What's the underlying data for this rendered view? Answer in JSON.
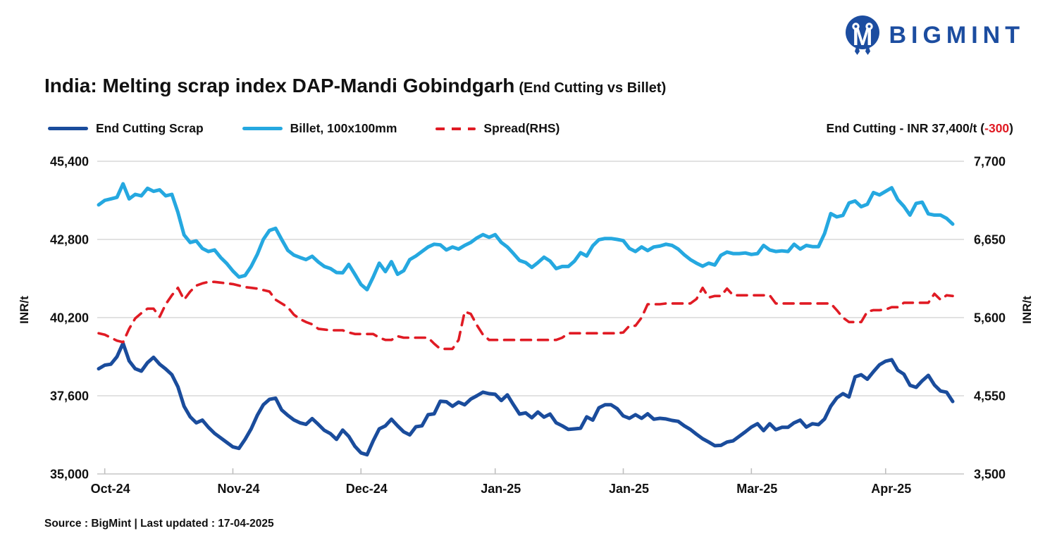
{
  "logo": {
    "text": "BIGMINT",
    "color": "#1c4da0"
  },
  "title": {
    "main": "India: Melting scrap index DAP-Mandi Gobindgarh",
    "sub": "(End Cutting vs Billet)"
  },
  "legend": {
    "items": [
      {
        "label": "End Cutting Scrap",
        "color": "#1a4c9c",
        "style": "solid"
      },
      {
        "label": "Billet, 100x100mm",
        "color": "#25a8e0",
        "style": "solid"
      },
      {
        "label": "Spread(RHS)",
        "color": "#e01b24",
        "style": "dashed"
      }
    ]
  },
  "annotation": {
    "prefix": "End Cutting - INR 37,400/t (",
    "change": "-300",
    "suffix": ")"
  },
  "source": "Source : BigMint | Last updated : 17-04-2025",
  "chart_data": {
    "type": "line",
    "title": "India: Melting scrap index DAP-Mandi Gobindgarh (End Cutting vs Billet)",
    "grid": true,
    "legend_position": "top-left",
    "x_tick_labels": [
      "Oct-24",
      "Nov-24",
      "Dec-24",
      "Jan-25",
      "Jan-25",
      "Mar-25",
      "Apr-25"
    ],
    "x_tick_indices": [
      1,
      22,
      43,
      65,
      86,
      107,
      129
    ],
    "left_axis": {
      "label": "INR/t",
      "range": [
        35000,
        45400
      ],
      "ticks": [
        45400,
        42800,
        40200,
        37600,
        35000
      ],
      "tick_labels": [
        "45,400",
        "42,800",
        "40,200",
        "37,600",
        "35,000"
      ]
    },
    "right_axis": {
      "label": "INR/t",
      "range": [
        3500,
        7700
      ],
      "ticks": [
        7700,
        6650,
        5600,
        4550,
        3500
      ],
      "tick_labels": [
        "7,700",
        "6,650",
        "5,600",
        "4,550",
        "3,500"
      ]
    },
    "series": [
      {
        "name": "End Cutting Scrap",
        "axis": "left",
        "color": "#1a4c9c",
        "style": "solid",
        "last_value": 37400,
        "last_change": -300,
        "values": [
          38500,
          38620,
          38650,
          38900,
          39350,
          38760,
          38500,
          38420,
          38700,
          38880,
          38650,
          38490,
          38300,
          37900,
          37250,
          36900,
          36700,
          36790,
          36550,
          36350,
          36200,
          36050,
          35900,
          35850,
          36150,
          36500,
          36950,
          37300,
          37480,
          37520,
          37130,
          36950,
          36800,
          36700,
          36650,
          36840,
          36650,
          36450,
          36340,
          36150,
          36460,
          36250,
          35920,
          35700,
          35640,
          36100,
          36500,
          36600,
          36820,
          36600,
          36400,
          36300,
          36570,
          36600,
          36970,
          37000,
          37420,
          37400,
          37250,
          37390,
          37300,
          37490,
          37600,
          37720,
          37670,
          37650,
          37440,
          37630,
          37300,
          36990,
          37030,
          36870,
          37060,
          36890,
          36990,
          36700,
          36600,
          36480,
          36500,
          36520,
          36900,
          36790,
          37200,
          37300,
          37300,
          37170,
          36930,
          36850,
          36970,
          36850,
          37000,
          36820,
          36850,
          36830,
          36780,
          36750,
          36600,
          36480,
          36320,
          36170,
          36060,
          35940,
          35950,
          36060,
          36100,
          36250,
          36400,
          36560,
          36670,
          36440,
          36670,
          36470,
          36550,
          36550,
          36700,
          36790,
          36560,
          36670,
          36640,
          36830,
          37250,
          37530,
          37670,
          37560,
          38230,
          38300,
          38150,
          38400,
          38630,
          38750,
          38800,
          38450,
          38320,
          37950,
          37880,
          38100,
          38280,
          37960,
          37760,
          37720,
          37410
        ]
      },
      {
        "name": "Billet, 100x100mm",
        "axis": "left",
        "color": "#25a8e0",
        "style": "solid",
        "values": [
          43950,
          44100,
          44150,
          44200,
          44650,
          44150,
          44300,
          44250,
          44500,
          44400,
          44450,
          44250,
          44300,
          43700,
          42950,
          42700,
          42750,
          42500,
          42400,
          42450,
          42200,
          42000,
          41750,
          41550,
          41600,
          41900,
          42300,
          42800,
          43100,
          43170,
          42800,
          42440,
          42280,
          42200,
          42130,
          42240,
          42050,
          41900,
          41830,
          41700,
          41690,
          41970,
          41640,
          41300,
          41130,
          41550,
          42010,
          41730,
          42060,
          41640,
          41760,
          42130,
          42250,
          42400,
          42550,
          42640,
          42620,
          42450,
          42550,
          42480,
          42600,
          42700,
          42850,
          42960,
          42870,
          42960,
          42700,
          42550,
          42330,
          42100,
          42030,
          41870,
          42030,
          42210,
          42080,
          41830,
          41900,
          41900,
          42080,
          42360,
          42250,
          42590,
          42790,
          42830,
          42830,
          42800,
          42760,
          42500,
          42400,
          42550,
          42430,
          42550,
          42580,
          42640,
          42600,
          42480,
          42290,
          42130,
          42010,
          41910,
          42010,
          41950,
          42270,
          42380,
          42330,
          42330,
          42350,
          42300,
          42330,
          42600,
          42450,
          42400,
          42420,
          42400,
          42640,
          42480,
          42600,
          42560,
          42560,
          43000,
          43660,
          43550,
          43600,
          44010,
          44080,
          43890,
          43970,
          44360,
          44280,
          44400,
          44520,
          44120,
          43900,
          43610,
          44000,
          44040,
          43650,
          43610,
          43610,
          43500,
          43310
        ]
      },
      {
        "name": "Spread(RHS)",
        "axis": "right",
        "color": "#e01b24",
        "style": "dashed",
        "values": [
          5390,
          5370,
          5330,
          5290,
          5270,
          5450,
          5590,
          5660,
          5720,
          5720,
          5610,
          5780,
          5900,
          6000,
          5840,
          5950,
          6030,
          6060,
          6080,
          6080,
          6070,
          6060,
          6050,
          6030,
          6010,
          6000,
          5990,
          5970,
          5950,
          5840,
          5790,
          5740,
          5640,
          5580,
          5540,
          5510,
          5450,
          5440,
          5430,
          5430,
          5430,
          5400,
          5380,
          5380,
          5380,
          5380,
          5330,
          5300,
          5300,
          5350,
          5330,
          5330,
          5330,
          5330,
          5330,
          5250,
          5180,
          5180,
          5180,
          5300,
          5680,
          5650,
          5500,
          5370,
          5300,
          5300,
          5300,
          5300,
          5300,
          5300,
          5300,
          5300,
          5300,
          5300,
          5300,
          5300,
          5330,
          5390,
          5390,
          5390,
          5390,
          5390,
          5390,
          5390,
          5390,
          5390,
          5400,
          5490,
          5490,
          5600,
          5780,
          5780,
          5780,
          5790,
          5790,
          5790,
          5790,
          5790,
          5850,
          6000,
          5870,
          5890,
          5890,
          5990,
          5900,
          5900,
          5900,
          5900,
          5900,
          5900,
          5900,
          5790,
          5790,
          5790,
          5790,
          5790,
          5790,
          5790,
          5790,
          5790,
          5790,
          5700,
          5600,
          5540,
          5540,
          5540,
          5680,
          5700,
          5700,
          5710,
          5740,
          5740,
          5800,
          5800,
          5800,
          5800,
          5800,
          5920,
          5840,
          5900,
          5890
        ]
      }
    ]
  }
}
